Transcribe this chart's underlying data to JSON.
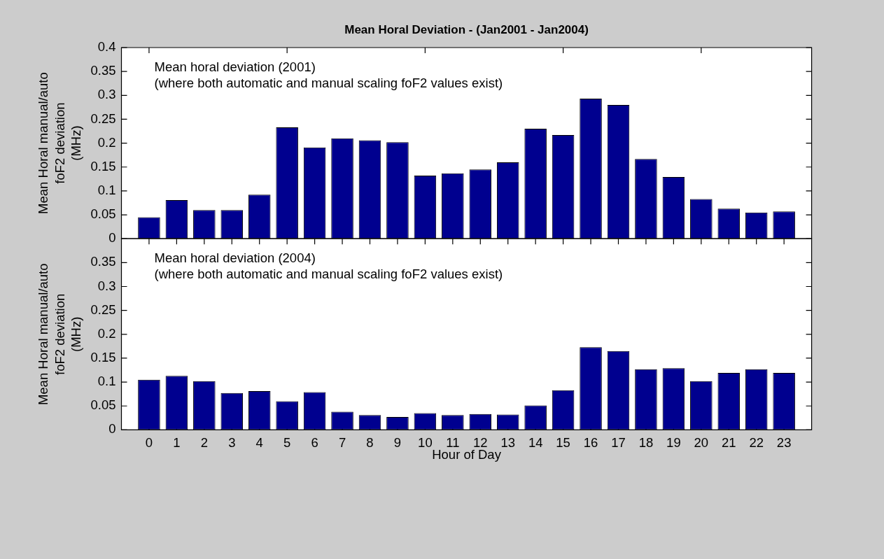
{
  "chart_data": [
    {
      "type": "bar",
      "title": "Mean Horal Deviation - (Jan2001 - Jan2004)",
      "ylabel": "Mean Horal manual/auto\nfoF2 deviation\n(MHz)",
      "annotations": [
        "Mean horal deviation (2001)",
        "(where both automatic and manual scaling foF2 values exist)"
      ],
      "x": [
        0,
        1,
        2,
        3,
        4,
        5,
        6,
        7,
        8,
        9,
        10,
        11,
        12,
        13,
        14,
        15,
        16,
        17,
        18,
        19,
        20,
        21,
        22,
        23
      ],
      "values": [
        0.045,
        0.081,
        0.06,
        0.06,
        0.092,
        0.233,
        0.191,
        0.21,
        0.206,
        0.202,
        0.132,
        0.137,
        0.145,
        0.16,
        0.23,
        0.217,
        0.293,
        0.28,
        0.167,
        0.129,
        0.083,
        0.063,
        0.055,
        0.057
      ],
      "color": "#00008f",
      "xlim": [
        -1,
        24
      ],
      "xticks": [
        0,
        5,
        10,
        15,
        20
      ],
      "ylim": [
        0,
        0.4
      ],
      "yticks": [
        0,
        0.05,
        0.1,
        0.15,
        0.2,
        0.25,
        0.3,
        0.35,
        0.4
      ],
      "tick_labels": "y"
    },
    {
      "type": "bar",
      "xlabel": "Hour of Day",
      "ylabel": "Mean Horal manual/auto\nfoF2 deviation\n(MHz)",
      "annotations": [
        "Mean horal deviation (2004)",
        "(where both automatic and manual scaling foF2 values exist)"
      ],
      "x": [
        0,
        1,
        2,
        3,
        4,
        5,
        6,
        7,
        8,
        9,
        10,
        11,
        12,
        13,
        14,
        15,
        16,
        17,
        18,
        19,
        20,
        21,
        22,
        23
      ],
      "values": [
        0.105,
        0.113,
        0.102,
        0.077,
        0.081,
        0.06,
        0.079,
        0.038,
        0.031,
        0.027,
        0.035,
        0.031,
        0.033,
        0.032,
        0.051,
        0.083,
        0.173,
        0.165,
        0.127,
        0.129,
        0.102,
        0.119,
        0.127,
        0.119
      ],
      "color": "#00008f",
      "xlim": [
        -1,
        24
      ],
      "xticks": [
        0,
        1,
        2,
        3,
        4,
        5,
        6,
        7,
        8,
        9,
        10,
        11,
        12,
        13,
        14,
        15,
        16,
        17,
        18,
        19,
        20,
        21,
        22,
        23
      ],
      "ylim": [
        0,
        0.4
      ],
      "yticks": [
        0,
        0.05,
        0.1,
        0.15,
        0.2,
        0.25,
        0.3,
        0.35
      ]
    }
  ]
}
